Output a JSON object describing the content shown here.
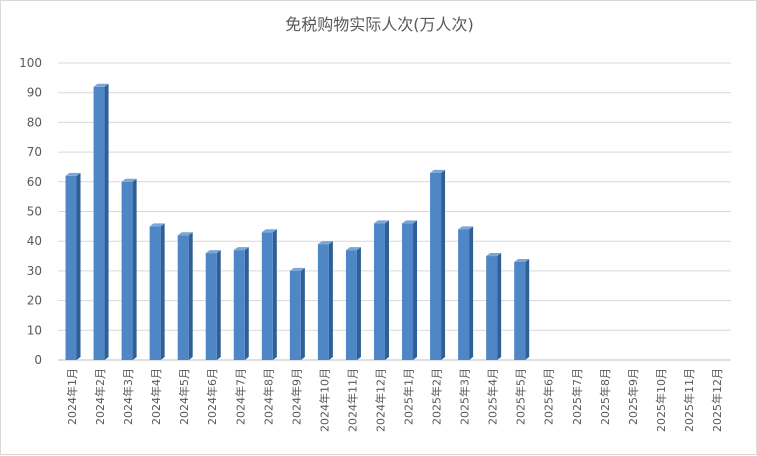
{
  "chart_data": {
    "type": "bar",
    "title": "免税购物实际人次(万人次)",
    "xlabel": "",
    "ylabel": "",
    "ylim": [
      0,
      100
    ],
    "yticks": [
      0,
      10,
      20,
      30,
      40,
      50,
      60,
      70,
      80,
      90,
      100
    ],
    "grid": true,
    "legend": "none",
    "bar_color": "#4f87c6",
    "categories": [
      "2024年1月",
      "2024年2月",
      "2024年3月",
      "2024年4月",
      "2024年5月",
      "2024年6月",
      "2024年7月",
      "2024年8月",
      "2024年9月",
      "2024年10月",
      "2024年11月",
      "2024年12月",
      "2025年1月",
      "2025年2月",
      "2025年3月",
      "2025年4月",
      "2025年5月",
      "2025年6月",
      "2025年7月",
      "2025年8月",
      "2025年9月",
      "2025年10月",
      "2025年11月",
      "2025年12月"
    ],
    "values": [
      62,
      92,
      60,
      45,
      42,
      36,
      37,
      43,
      30,
      39,
      37,
      46,
      46,
      63,
      44,
      35,
      33,
      null,
      null,
      null,
      null,
      null,
      null,
      null
    ]
  }
}
